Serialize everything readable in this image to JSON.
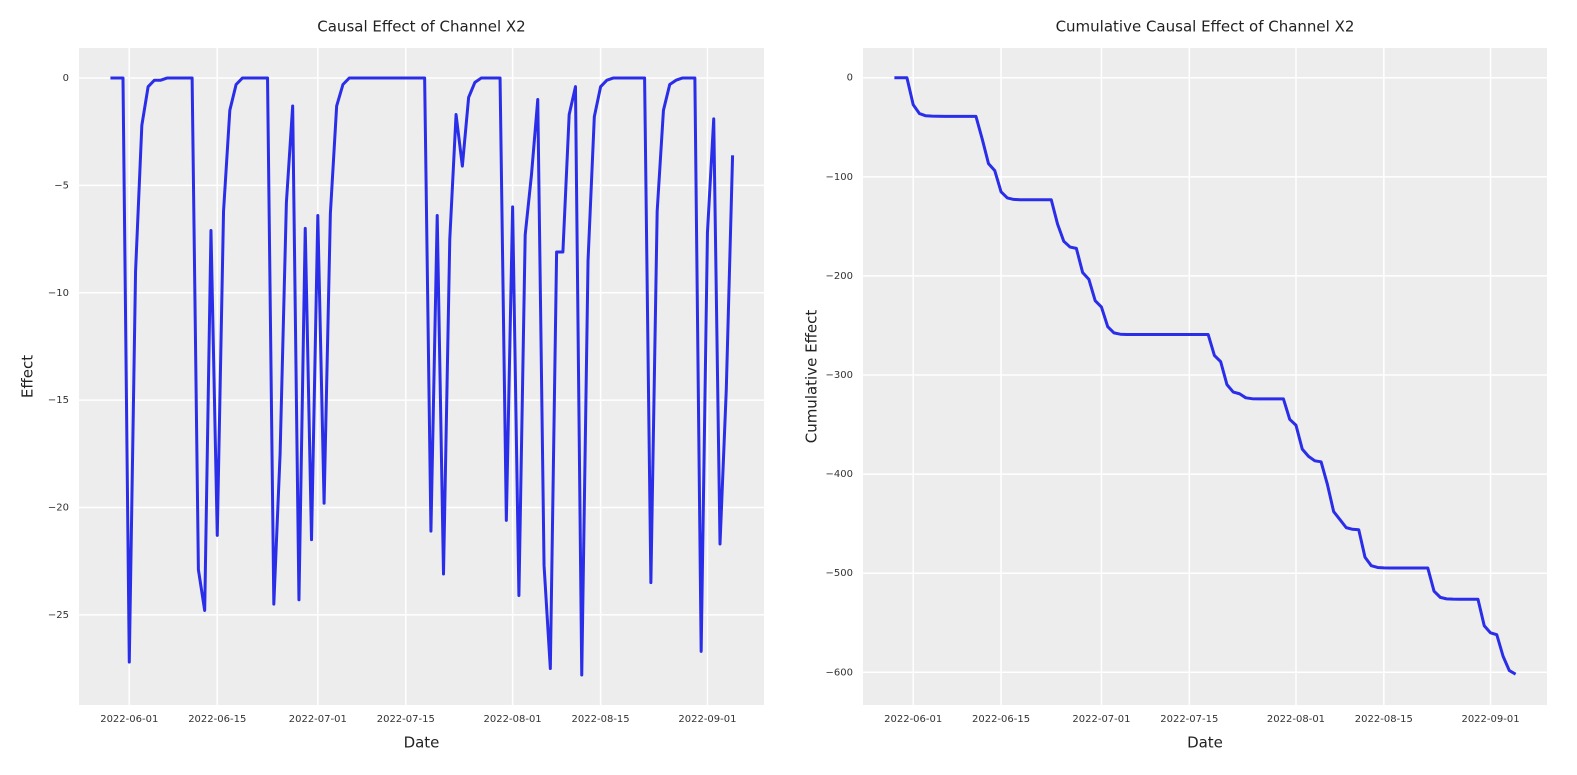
{
  "chart_data": [
    {
      "type": "line",
      "title": "Causal Effect of Channel X2",
      "xlabel": "Date",
      "ylabel": "Effect",
      "color": "#2b2ee8",
      "grid": true,
      "x": [
        "2022-05-29",
        "2022-05-30",
        "2022-05-31",
        "2022-06-01",
        "2022-06-02",
        "2022-06-03",
        "2022-06-04",
        "2022-06-05",
        "2022-06-06",
        "2022-06-07",
        "2022-06-08",
        "2022-06-09",
        "2022-06-10",
        "2022-06-11",
        "2022-06-12",
        "2022-06-13",
        "2022-06-14",
        "2022-06-15",
        "2022-06-16",
        "2022-06-17",
        "2022-06-18",
        "2022-06-19",
        "2022-06-20",
        "2022-06-21",
        "2022-06-22",
        "2022-06-23",
        "2022-06-24",
        "2022-06-25",
        "2022-06-26",
        "2022-06-27",
        "2022-06-28",
        "2022-06-29",
        "2022-06-30",
        "2022-07-01",
        "2022-07-02",
        "2022-07-03",
        "2022-07-04",
        "2022-07-05",
        "2022-07-06",
        "2022-07-07",
        "2022-07-08",
        "2022-07-09",
        "2022-07-10",
        "2022-07-11",
        "2022-07-12",
        "2022-07-13",
        "2022-07-14",
        "2022-07-15",
        "2022-07-16",
        "2022-07-17",
        "2022-07-18",
        "2022-07-19",
        "2022-07-20",
        "2022-07-21",
        "2022-07-22",
        "2022-07-23",
        "2022-07-24",
        "2022-07-25",
        "2022-07-26",
        "2022-07-27",
        "2022-07-28",
        "2022-07-29",
        "2022-07-30",
        "2022-07-31",
        "2022-08-01",
        "2022-08-02",
        "2022-08-03",
        "2022-08-04",
        "2022-08-05",
        "2022-08-06",
        "2022-08-07",
        "2022-08-08",
        "2022-08-09",
        "2022-08-10",
        "2022-08-11",
        "2022-08-12",
        "2022-08-13",
        "2022-08-14",
        "2022-08-15",
        "2022-08-16",
        "2022-08-17",
        "2022-08-18",
        "2022-08-19",
        "2022-08-20",
        "2022-08-21",
        "2022-08-22",
        "2022-08-23",
        "2022-08-24",
        "2022-08-25",
        "2022-08-26",
        "2022-08-27",
        "2022-08-28",
        "2022-08-29",
        "2022-08-30",
        "2022-08-31",
        "2022-09-01",
        "2022-09-02",
        "2022-09-03",
        "2022-09-04",
        "2022-09-05"
      ],
      "values": [
        0,
        0,
        0,
        -27.2,
        -9,
        -2.2,
        -0.4,
        -0.1,
        -0.1,
        0,
        0,
        0,
        0,
        0,
        -22.9,
        -24.8,
        -7.1,
        -21.3,
        -6.2,
        -1.5,
        -0.3,
        0,
        0,
        0,
        0,
        0,
        -24.5,
        -17.5,
        -5.8,
        -1.3,
        -24.3,
        -7,
        -21.5,
        -6.4,
        -19.8,
        -6.3,
        -1.3,
        -0.3,
        0,
        0,
        0,
        0,
        0,
        0,
        0,
        0,
        0,
        0,
        0,
        0,
        0,
        -21.1,
        -6.4,
        -23.1,
        -7.5,
        -1.7,
        -4.1,
        -0.9,
        -0.2,
        0,
        0,
        0,
        0,
        -20.6,
        -6,
        -24.1,
        -7.3,
        -4.5,
        -1,
        -22.7,
        -27.5,
        -8.1,
        -8.1,
        -1.7,
        -0.4,
        -27.8,
        -8.5,
        -1.8,
        -0.4,
        -0.1,
        0,
        0,
        0,
        0,
        0,
        0,
        -23.5,
        -6.2,
        -1.5,
        -0.3,
        -0.1,
        0,
        0,
        0,
        -26.7,
        -7.2,
        -1.9,
        -21.7,
        -14.5,
        -3.6
      ],
      "xlim": [
        "2022-05-24",
        "2022-09-10"
      ],
      "xticks": [
        "2022-06-01",
        "2022-06-15",
        "2022-07-01",
        "2022-07-15",
        "2022-08-01",
        "2022-08-15",
        "2022-09-01"
      ],
      "ylim": [
        -29.2,
        1.4
      ],
      "yticks": [
        {
          "value": -25,
          "label": "−25"
        },
        {
          "value": -20,
          "label": "−20"
        },
        {
          "value": -15,
          "label": "−15"
        },
        {
          "value": -10,
          "label": "−10"
        },
        {
          "value": -5,
          "label": "−5"
        },
        0
      ]
    },
    {
      "type": "line",
      "title": "Cumulative Causal Effect of Channel X2",
      "xlabel": "Date",
      "ylabel": "Cumulative Effect",
      "color": "#2b2ee8",
      "grid": true,
      "x": [
        "2022-05-29",
        "2022-05-30",
        "2022-05-31",
        "2022-06-01",
        "2022-06-02",
        "2022-06-03",
        "2022-06-04",
        "2022-06-05",
        "2022-06-06",
        "2022-06-07",
        "2022-06-08",
        "2022-06-09",
        "2022-06-10",
        "2022-06-11",
        "2022-06-12",
        "2022-06-13",
        "2022-06-14",
        "2022-06-15",
        "2022-06-16",
        "2022-06-17",
        "2022-06-18",
        "2022-06-19",
        "2022-06-20",
        "2022-06-21",
        "2022-06-22",
        "2022-06-23",
        "2022-06-24",
        "2022-06-25",
        "2022-06-26",
        "2022-06-27",
        "2022-06-28",
        "2022-06-29",
        "2022-06-30",
        "2022-07-01",
        "2022-07-02",
        "2022-07-03",
        "2022-07-04",
        "2022-07-05",
        "2022-07-06",
        "2022-07-07",
        "2022-07-08",
        "2022-07-09",
        "2022-07-10",
        "2022-07-11",
        "2022-07-12",
        "2022-07-13",
        "2022-07-14",
        "2022-07-15",
        "2022-07-16",
        "2022-07-17",
        "2022-07-18",
        "2022-07-19",
        "2022-07-20",
        "2022-07-21",
        "2022-07-22",
        "2022-07-23",
        "2022-07-24",
        "2022-07-25",
        "2022-07-26",
        "2022-07-27",
        "2022-07-28",
        "2022-07-29",
        "2022-07-30",
        "2022-07-31",
        "2022-08-01",
        "2022-08-02",
        "2022-08-03",
        "2022-08-04",
        "2022-08-05",
        "2022-08-06",
        "2022-08-07",
        "2022-08-08",
        "2022-08-09",
        "2022-08-10",
        "2022-08-11",
        "2022-08-12",
        "2022-08-13",
        "2022-08-14",
        "2022-08-15",
        "2022-08-16",
        "2022-08-17",
        "2022-08-18",
        "2022-08-19",
        "2022-08-20",
        "2022-08-21",
        "2022-08-22",
        "2022-08-23",
        "2022-08-24",
        "2022-08-25",
        "2022-08-26",
        "2022-08-27",
        "2022-08-28",
        "2022-08-29",
        "2022-08-30",
        "2022-08-31",
        "2022-09-01",
        "2022-09-02",
        "2022-09-03",
        "2022-09-04",
        "2022-09-05"
      ],
      "values": [
        0,
        0,
        0,
        -27.2,
        -36.2,
        -38.4,
        -38.8,
        -38.9,
        -39,
        -39,
        -39,
        -39,
        -39,
        -39,
        -61.9,
        -86.7,
        -93.8,
        -115.1,
        -121.3,
        -122.8,
        -123.1,
        -123.1,
        -123.1,
        -123.1,
        -123.1,
        -123.1,
        -147.6,
        -165.1,
        -170.9,
        -172.2,
        -196.5,
        -203.5,
        -225,
        -231.4,
        -251.2,
        -257.5,
        -258.8,
        -259.1,
        -259.1,
        -259.1,
        -259.1,
        -259.1,
        -259.1,
        -259.1,
        -259.1,
        -259.1,
        -259.1,
        -259.1,
        -259.1,
        -259.1,
        -259.1,
        -280.2,
        -286.6,
        -309.7,
        -317.2,
        -318.9,
        -323,
        -323.9,
        -324.1,
        -324.1,
        -324.1,
        -324.1,
        -324.1,
        -344.7,
        -350.7,
        -374.8,
        -382.1,
        -386.6,
        -387.6,
        -410.3,
        -437.8,
        -445.9,
        -454,
        -455.7,
        -456.1,
        -483.9,
        -492.4,
        -494.2,
        -494.6,
        -494.7,
        -494.7,
        -494.7,
        -494.7,
        -494.7,
        -494.7,
        -494.7,
        -518.2,
        -524.4,
        -525.9,
        -526.2,
        -526.3,
        -526.3,
        -526.3,
        -526.3,
        -553,
        -560.2,
        -562.1,
        -583.8,
        -598.3,
        -601.9
      ],
      "xlim": [
        "2022-05-24",
        "2022-09-10"
      ],
      "xticks": [
        "2022-06-01",
        "2022-06-15",
        "2022-07-01",
        "2022-07-15",
        "2022-08-01",
        "2022-08-15",
        "2022-09-01"
      ],
      "ylim": [
        -633,
        30
      ],
      "yticks": [
        {
          "value": -600,
          "label": "−600"
        },
        {
          "value": -500,
          "label": "−500"
        },
        {
          "value": -400,
          "label": "−400"
        },
        {
          "value": -300,
          "label": "−300"
        },
        {
          "value": -200,
          "label": "−200"
        },
        {
          "value": -100,
          "label": "−100"
        },
        0
      ]
    }
  ]
}
